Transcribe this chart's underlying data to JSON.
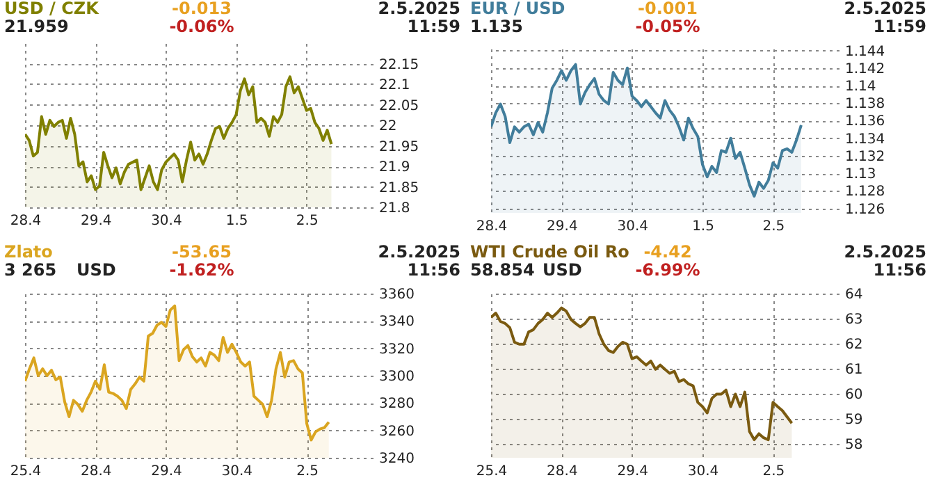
{
  "chart_data": [
    {
      "type": "area",
      "title": "USD / CZK",
      "subtitle": "21.959",
      "annotations": [
        "-0.013",
        "-0.06%",
        "2.5.2025",
        "11:59"
      ],
      "grid": true,
      "categories": [
        "28.4",
        null,
        null,
        null,
        null,
        null,
        null,
        null,
        null,
        null,
        null,
        null,
        null,
        null,
        null,
        null,
        null,
        "29.4",
        null,
        null,
        null,
        null,
        null,
        null,
        null,
        null,
        null,
        null,
        null,
        null,
        null,
        null,
        null,
        null,
        "30.4",
        null,
        null,
        null,
        null,
        null,
        null,
        null,
        null,
        null,
        null,
        null,
        null,
        null,
        null,
        null,
        null,
        "1.5",
        null,
        null,
        null,
        null,
        null,
        null,
        null,
        null,
        null,
        null,
        null,
        null,
        null,
        null,
        null,
        null,
        "2.5",
        null,
        null,
        null,
        null,
        null,
        null,
        null,
        null,
        null,
        null,
        null,
        null,
        null,
        null,
        null,
        null
      ],
      "ylim": [
        21.8,
        22.2
      ],
      "yticks": [
        21.8,
        21.85,
        21.9,
        21.95,
        22,
        22.05,
        22.1,
        22.15
      ],
      "series": [
        {
          "color": "#808000",
          "values": [
            21.978,
            21.963,
            21.925,
            21.934,
            22.021,
            21.978,
            22.012,
            21.997,
            22.007,
            22.012,
            21.968,
            22.017,
            21.978,
            21.901,
            21.911,
            21.862,
            21.877,
            21.843,
            21.852,
            21.934,
            21.901,
            21.872,
            21.896,
            21.857,
            21.886,
            21.905,
            21.91,
            21.915,
            21.843,
            21.872,
            21.901,
            21.862,
            21.843,
            21.891,
            21.91,
            21.92,
            21.93,
            21.915,
            21.862,
            21.915,
            21.959,
            21.915,
            21.93,
            21.905,
            21.93,
            21.963,
            21.992,
            21.997,
            21.968,
            21.992,
            22.007,
            22.026,
            22.084,
            22.113,
            22.074,
            22.094,
            22.007,
            22.017,
            22.007,
            21.973,
            22.021,
            22.007,
            22.026,
            22.094,
            22.118,
            22.079,
            22.094,
            22.065,
            22.036,
            22.041,
            22.007,
            21.992,
            21.963,
            21.988,
            21.954,
            null,
            null,
            null,
            null,
            null,
            null,
            null,
            null,
            null,
            null
          ]
        }
      ]
    },
    {
      "type": "area",
      "title": "EUR / USD",
      "subtitle": "1.135",
      "annotations": [
        "-0.001",
        "-0.05%",
        "2.5.2025",
        "11:59"
      ],
      "grid": true,
      "categories": [
        "28.4",
        null,
        null,
        null,
        null,
        null,
        null,
        null,
        null,
        null,
        null,
        null,
        null,
        null,
        null,
        "29.4",
        null,
        null,
        null,
        null,
        null,
        null,
        null,
        null,
        null,
        null,
        null,
        null,
        null,
        null,
        "30.4",
        null,
        null,
        null,
        null,
        null,
        null,
        null,
        null,
        null,
        null,
        null,
        null,
        null,
        null,
        "1.5",
        null,
        null,
        null,
        null,
        null,
        null,
        null,
        null,
        null,
        null,
        null,
        null,
        null,
        null,
        "2.5",
        null,
        null,
        null,
        null,
        null,
        null,
        null,
        null,
        null,
        null,
        null,
        null,
        null,
        null
      ],
      "ylim": [
        1.1255,
        1.1442
      ],
      "yticks": [
        1.126,
        1.128,
        1.13,
        1.132,
        1.134,
        1.136,
        1.138,
        1.14,
        1.142,
        1.144
      ],
      "series": [
        {
          "color": "#417d9b",
          "values": [
            1.1353,
            1.1369,
            1.1379,
            1.1365,
            1.1335,
            1.1353,
            1.1347,
            1.1353,
            1.1356,
            1.1344,
            1.1358,
            1.1347,
            1.1369,
            1.1397,
            1.1406,
            1.1417,
            1.1406,
            1.1417,
            1.1424,
            1.1379,
            1.1392,
            1.1401,
            1.1408,
            1.139,
            1.1383,
            1.1379,
            1.1415,
            1.1406,
            1.1401,
            1.142,
            1.1388,
            1.1383,
            1.1376,
            1.1383,
            1.1376,
            1.1369,
            1.1363,
            1.1383,
            1.1372,
            1.1365,
            1.1353,
            1.1338,
            1.1363,
            1.1351,
            1.1342,
            1.131,
            1.1296,
            1.1308,
            1.1301,
            1.1326,
            1.1324,
            1.134,
            1.1317,
            1.1324,
            1.1306,
            1.1287,
            1.1274,
            1.129,
            1.1283,
            1.1292,
            1.1312,
            1.1306,
            1.1326,
            1.1328,
            1.1324,
            1.1338,
            1.1355,
            null,
            null,
            null,
            null,
            null,
            null,
            null,
            null
          ]
        }
      ]
    },
    {
      "type": "area",
      "title": "Zlato",
      "subtitle": "3 265",
      "annotations": [
        "-53.65",
        "-1.62%",
        "2.5.2025",
        "11:56",
        "USD"
      ],
      "grid": true,
      "categories": [
        "25.4",
        null,
        null,
        null,
        null,
        null,
        null,
        null,
        null,
        null,
        null,
        null,
        null,
        null,
        null,
        null,
        "28.4",
        null,
        null,
        null,
        null,
        null,
        null,
        null,
        null,
        null,
        null,
        null,
        null,
        null,
        null,
        null,
        "29.4",
        null,
        null,
        null,
        null,
        null,
        null,
        null,
        null,
        null,
        null,
        null,
        null,
        null,
        null,
        null,
        "30.4",
        null,
        null,
        null,
        null,
        null,
        null,
        null,
        null,
        null,
        null,
        null,
        null,
        null,
        null,
        null,
        "2.5",
        null,
        null,
        null,
        null,
        null,
        null,
        null,
        null,
        null,
        null,
        null,
        null,
        null,
        null,
        null
      ],
      "ylim": [
        3240,
        3360
      ],
      "yticks": [
        3240,
        3260,
        3280,
        3300,
        3320,
        3340,
        3360
      ],
      "series": [
        {
          "color": "#daa520",
          "values": [
            3296,
            3305,
            3313,
            3300,
            3305,
            3300,
            3304,
            3297,
            3299,
            3281,
            3270,
            3282,
            3279,
            3274,
            3282,
            3288,
            3296,
            3290,
            3308,
            3288,
            3287,
            3285,
            3282,
            3276,
            3290,
            3294,
            3299,
            3296,
            3329,
            3331,
            3337,
            3339,
            3336,
            3348,
            3351,
            3311,
            3319,
            3322,
            3314,
            3310,
            3313,
            3307,
            3317,
            3315,
            3311,
            3328,
            3317,
            3323,
            3317,
            3310,
            3307,
            3310,
            3285,
            3282,
            3279,
            3270,
            3282,
            3305,
            3317,
            3299,
            3310,
            3311,
            3305,
            3302,
            3265,
            3253,
            3259,
            3261,
            3262,
            3266,
            null,
            null,
            null,
            null,
            null,
            null,
            null,
            null,
            null,
            null
          ]
        }
      ]
    },
    {
      "type": "area",
      "title": "WTI Crude Oil Ro",
      "subtitle": "58.854",
      "annotations": [
        "-4.42",
        "-6.99%",
        "2.5.2025",
        "11:56",
        "USD"
      ],
      "grid": true,
      "categories": [
        "25.4",
        null,
        null,
        null,
        null,
        null,
        null,
        null,
        null,
        null,
        null,
        null,
        null,
        null,
        null,
        "28.4",
        null,
        null,
        null,
        null,
        null,
        null,
        null,
        null,
        null,
        null,
        null,
        null,
        null,
        null,
        "29.4",
        null,
        null,
        null,
        null,
        null,
        null,
        null,
        null,
        null,
        null,
        null,
        null,
        null,
        null,
        "30.4",
        null,
        null,
        null,
        null,
        null,
        null,
        null,
        null,
        null,
        null,
        null,
        null,
        null,
        null,
        "2.5",
        null,
        null,
        null,
        null,
        null,
        null,
        null,
        null,
        null,
        null,
        null,
        null,
        null,
        null
      ],
      "ylim": [
        57.45,
        64
      ],
      "yticks": [
        58,
        59,
        60,
        61,
        62,
        63,
        64
      ],
      "series": [
        {
          "color": "#7a5a10",
          "values": [
            63.05,
            63.22,
            62.89,
            62.81,
            62.64,
            62.06,
            61.98,
            61.98,
            62.47,
            62.56,
            62.81,
            62.97,
            63.22,
            63.05,
            63.22,
            63.43,
            63.3,
            62.97,
            62.81,
            62.67,
            62.81,
            63.05,
            63.05,
            62.39,
            61.98,
            61.73,
            61.65,
            61.89,
            62.06,
            61.98,
            61.4,
            61.48,
            61.31,
            61.15,
            61.31,
            60.98,
            61.15,
            60.98,
            60.82,
            60.9,
            60.49,
            60.57,
            60.4,
            60.32,
            59.66,
            59.49,
            59.24,
            59.82,
            59.99,
            59.99,
            60.15,
            59.49,
            59.99,
            59.49,
            60.07,
            58.5,
            58.17,
            58.41,
            58.25,
            58.17,
            59.66,
            59.49,
            59.33,
            59.08,
            58.83,
            null,
            null,
            null,
            null,
            null,
            null,
            null,
            null,
            null,
            null
          ]
        }
      ]
    }
  ]
}
